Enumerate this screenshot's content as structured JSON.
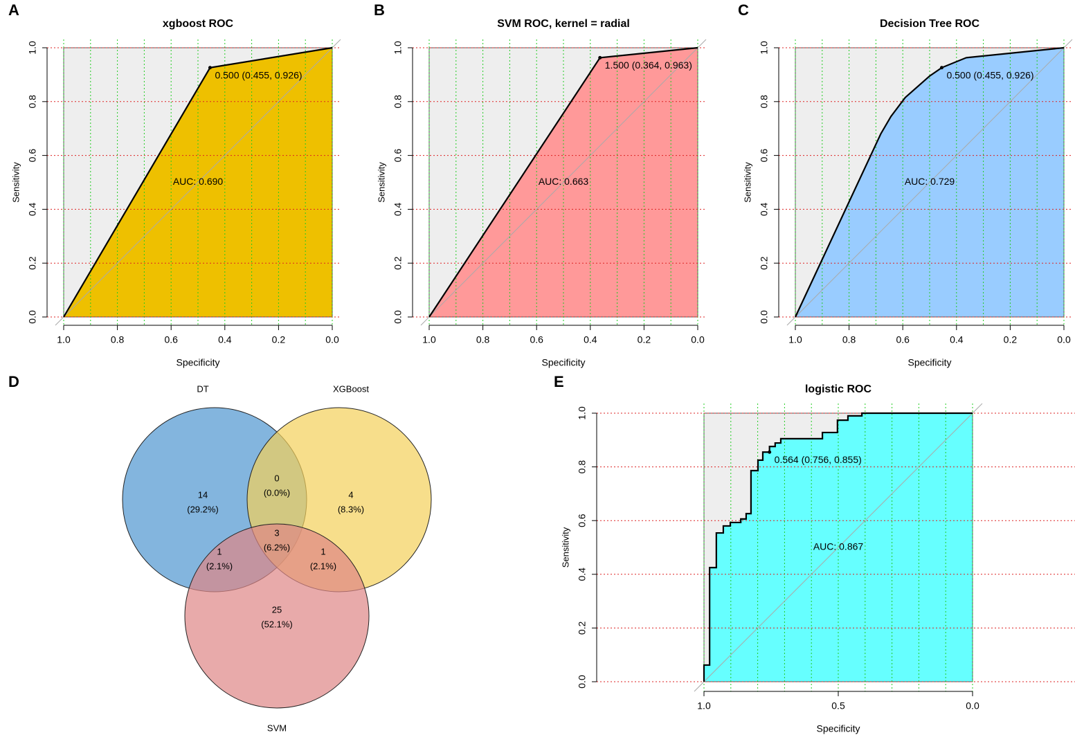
{
  "chart_data": [
    {
      "type": "line",
      "panel": "A",
      "title": "xgboost ROC",
      "x_label": "Specificity",
      "y_label": "Sensitivity",
      "x": [
        1.0,
        0.455,
        0.0
      ],
      "values": [
        0.0,
        0.926,
        1.0
      ],
      "color": "#EEC000",
      "xlim": [
        1.0,
        0.0
      ],
      "ylim": [
        0.0,
        1.0
      ],
      "xticks": [
        {
          "value": 1.0,
          "label": "1.0"
        },
        {
          "value": 0.8,
          "label": "0.8"
        },
        {
          "value": 0.6,
          "label": "0.6"
        },
        {
          "value": 0.4,
          "label": "0.4"
        },
        {
          "value": 0.2,
          "label": "0.2"
        },
        {
          "value": 0.0,
          "label": "0.0"
        }
      ],
      "yticks": [
        {
          "value": 0.0,
          "label": "0.0"
        },
        {
          "value": 0.2,
          "label": "0.2"
        },
        {
          "value": 0.4,
          "label": "0.4"
        },
        {
          "value": 0.6,
          "label": "0.6"
        },
        {
          "value": 0.8,
          "label": "0.8"
        },
        {
          "value": 1.0,
          "label": "1.0"
        }
      ],
      "xgrid": [
        1.0,
        0.9,
        0.8,
        0.7,
        0.6,
        0.5,
        0.4,
        0.3,
        0.2,
        0.1,
        0.0
      ],
      "ygrid": [
        0.0,
        0.2,
        0.4,
        0.6,
        0.8,
        1.0
      ],
      "threshold": {
        "x": 0.455,
        "y": 0.926,
        "label": "0.500 (0.455, 0.926)"
      },
      "auc_label": "AUC: 0.690"
    },
    {
      "type": "line",
      "panel": "B",
      "title": "SVM ROC, kernel = radial",
      "x_label": "Specificity",
      "y_label": "Sensitivity",
      "x": [
        1.0,
        0.364,
        0.0
      ],
      "values": [
        0.0,
        0.963,
        1.0
      ],
      "color": "#FF9999",
      "xlim": [
        1.0,
        0.0
      ],
      "ylim": [
        0.0,
        1.0
      ],
      "xticks": [
        {
          "value": 1.0,
          "label": "1.0"
        },
        {
          "value": 0.8,
          "label": "0.8"
        },
        {
          "value": 0.6,
          "label": "0.6"
        },
        {
          "value": 0.4,
          "label": "0.4"
        },
        {
          "value": 0.2,
          "label": "0.2"
        },
        {
          "value": 0.0,
          "label": "0.0"
        }
      ],
      "yticks": [
        {
          "value": 0.0,
          "label": "0.0"
        },
        {
          "value": 0.2,
          "label": "0.2"
        },
        {
          "value": 0.4,
          "label": "0.4"
        },
        {
          "value": 0.6,
          "label": "0.6"
        },
        {
          "value": 0.8,
          "label": "0.8"
        },
        {
          "value": 1.0,
          "label": "1.0"
        }
      ],
      "xgrid": [
        1.0,
        0.9,
        0.8,
        0.7,
        0.6,
        0.5,
        0.4,
        0.3,
        0.2,
        0.1,
        0.0
      ],
      "ygrid": [
        0.0,
        0.2,
        0.4,
        0.6,
        0.8,
        1.0
      ],
      "threshold": {
        "x": 0.364,
        "y": 0.963,
        "label": "1.500 (0.364, 0.963)"
      },
      "auc_label": "AUC: 0.663"
    },
    {
      "type": "line",
      "panel": "C",
      "title": "Decision Tree ROC",
      "x_label": "Specificity",
      "y_label": "Sensitivity",
      "x": [
        1.0,
        0.682,
        0.644,
        0.591,
        0.5,
        0.455,
        0.364,
        0.0
      ],
      "values": [
        0.0,
        0.68,
        0.745,
        0.815,
        0.895,
        0.926,
        0.963,
        1.0
      ],
      "color": "#99CCFF",
      "xlim": [
        1.0,
        0.0
      ],
      "ylim": [
        0.0,
        1.0
      ],
      "xticks": [
        {
          "value": 1.0,
          "label": "1.0"
        },
        {
          "value": 0.8,
          "label": "0.8"
        },
        {
          "value": 0.6,
          "label": "0.6"
        },
        {
          "value": 0.4,
          "label": "0.4"
        },
        {
          "value": 0.2,
          "label": "0.2"
        },
        {
          "value": 0.0,
          "label": "0.0"
        }
      ],
      "yticks": [
        {
          "value": 0.0,
          "label": "0.0"
        },
        {
          "value": 0.2,
          "label": "0.2"
        },
        {
          "value": 0.4,
          "label": "0.4"
        },
        {
          "value": 0.6,
          "label": "0.6"
        },
        {
          "value": 0.8,
          "label": "0.8"
        },
        {
          "value": 1.0,
          "label": "1.0"
        }
      ],
      "xgrid": [
        1.0,
        0.9,
        0.8,
        0.7,
        0.6,
        0.5,
        0.4,
        0.3,
        0.2,
        0.1,
        0.0
      ],
      "ygrid": [
        0.0,
        0.2,
        0.4,
        0.6,
        0.8,
        1.0
      ],
      "threshold": {
        "x": 0.455,
        "y": 0.926,
        "label": "0.500 (0.455, 0.926)"
      },
      "auc_label": "AUC: 0.729"
    },
    {
      "type": "venn",
      "panel": "D",
      "sets": [
        {
          "name": "DT",
          "color": "#4F95D0"
        },
        {
          "name": "XGBoost",
          "color": "#F4D05A"
        },
        {
          "name": "SVM",
          "color": "#DE8686"
        }
      ],
      "values": [
        14,
        0,
        4,
        1,
        3,
        1,
        25
      ],
      "percents": [
        29.2,
        0.0,
        8.3,
        2.1,
        6.2,
        2.1,
        52.1
      ],
      "percent_labels": [
        "(29.2%)",
        "(0.0%)",
        "(8.3%)",
        "(2.1%)",
        "(6.2%)",
        "(2.1%)",
        "(52.1%)"
      ]
    },
    {
      "type": "line",
      "panel": "E",
      "title": "logistic ROC",
      "x_label": "Specificity",
      "y_label": "Sensitivity",
      "x": [
        1.0,
        1.0,
        0.979,
        0.979,
        0.954,
        0.954,
        0.928,
        0.928,
        0.902,
        0.902,
        0.863,
        0.863,
        0.843,
        0.843,
        0.825,
        0.825,
        0.799,
        0.799,
        0.781,
        0.781,
        0.756,
        0.756,
        0.735,
        0.735,
        0.714,
        0.714,
        0.559,
        0.559,
        0.503,
        0.503,
        0.464,
        0.464,
        0.412,
        0.412,
        0.0
      ],
      "values": [
        0.0,
        0.062,
        0.062,
        0.425,
        0.425,
        0.554,
        0.554,
        0.58,
        0.58,
        0.593,
        0.593,
        0.606,
        0.606,
        0.626,
        0.626,
        0.786,
        0.786,
        0.825,
        0.825,
        0.855,
        0.855,
        0.876,
        0.876,
        0.889,
        0.889,
        0.905,
        0.905,
        0.928,
        0.928,
        0.974,
        0.974,
        0.99,
        0.99,
        1.0,
        1.0
      ],
      "color": "#66FFFF",
      "xlim": [
        1.0,
        0.0
      ],
      "ylim": [
        0.0,
        1.0
      ],
      "xticks": [
        {
          "value": 1.0,
          "label": "1.0"
        },
        {
          "value": 0.5,
          "label": "0.5"
        },
        {
          "value": 0.0,
          "label": "0.0"
        }
      ],
      "yticks": [
        {
          "value": 0.0,
          "label": "0.0"
        },
        {
          "value": 0.2,
          "label": "0.2"
        },
        {
          "value": 0.4,
          "label": "0.4"
        },
        {
          "value": 0.6,
          "label": "0.6"
        },
        {
          "value": 0.8,
          "label": "0.8"
        },
        {
          "value": 1.0,
          "label": "1.0"
        }
      ],
      "xgrid": [
        1.0,
        0.9,
        0.8,
        0.7,
        0.6,
        0.5,
        0.4,
        0.3,
        0.2,
        0.1,
        0.0
      ],
      "ygrid": [
        0.0,
        0.2,
        0.4,
        0.6,
        0.8,
        1.0
      ],
      "threshold": {
        "x": 0.756,
        "y": 0.855,
        "label": "0.564 (0.756, 0.855)"
      },
      "auc_label": "AUC: 0.867"
    }
  ]
}
